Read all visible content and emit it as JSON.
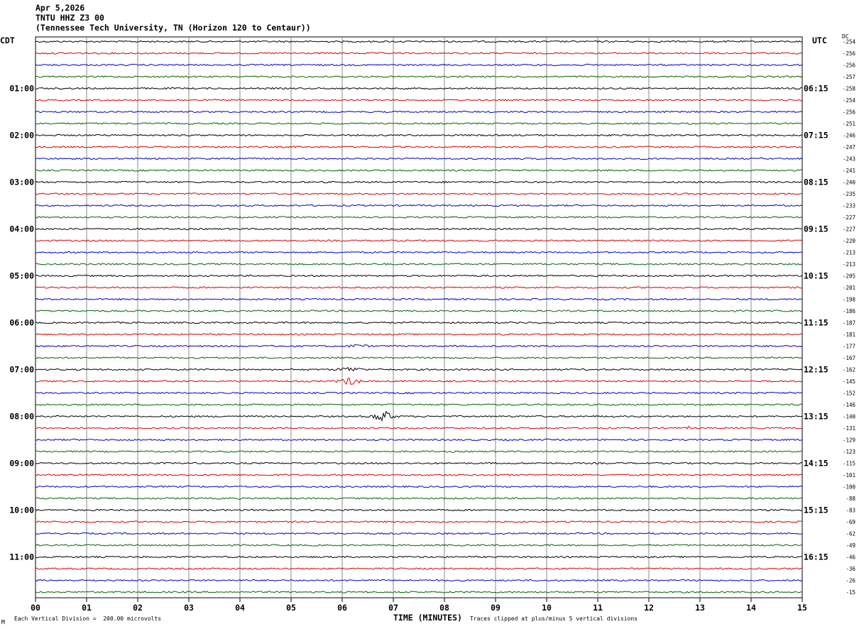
{
  "header": {
    "date": "Apr 5,2026",
    "station": "TNTU HHZ Z3 00",
    "location": "(Tennessee Tech University, TN (Horizon 120 to Centaur))"
  },
  "left_tz": "CDT",
  "right_tz": "UTC",
  "dc_label": "DC",
  "footer": {
    "scale": "Each Vertical Division =  200.00 microvolts",
    "xlabel": "TIME (MINUTES)",
    "clip": "Traces clipped at plus/minus 5 vertical divisions",
    "corner": "M"
  },
  "colors": {
    "black": "#000000",
    "red": "#dd0000",
    "blue": "#0000cc",
    "green": "#006600",
    "grid": "#888888"
  },
  "chart_data": {
    "type": "line",
    "title": "TNTU HHZ Z3 00",
    "xlabel": "TIME (MINUTES)",
    "xlim": [
      0,
      15
    ],
    "x_ticks": [
      "00",
      "01",
      "02",
      "03",
      "04",
      "05",
      "06",
      "07",
      "08",
      "09",
      "10",
      "11",
      "12",
      "13",
      "14",
      "15"
    ],
    "trace_minutes": 15,
    "trace_count": 48,
    "trace_color_cycle": [
      "black",
      "red",
      "blue",
      "green"
    ],
    "left_hour_labels": [
      "01:00",
      "02:00",
      "03:00",
      "04:00",
      "05:00",
      "06:00",
      "07:00",
      "08:00",
      "09:00",
      "10:00",
      "11:00"
    ],
    "right_hour_labels": [
      "06:15",
      "07:15",
      "08:15",
      "09:15",
      "10:15",
      "11:15",
      "12:15",
      "13:15",
      "14:15",
      "15:15",
      "16:15"
    ],
    "dc_offsets": [
      -254,
      -256,
      -256,
      -257,
      -258,
      -254,
      -256,
      -251,
      -246,
      -247,
      -243,
      -241,
      -240,
      -235,
      -233,
      -227,
      -227,
      -220,
      -213,
      -213,
      -205,
      -201,
      -198,
      -186,
      -187,
      -181,
      -177,
      -167,
      -162,
      -145,
      -152,
      -146,
      -140,
      -131,
      -129,
      -123,
      -115,
      -101,
      -100,
      -88,
      -83,
      -69,
      -62,
      -49,
      -46,
      -36,
      -26,
      -15
    ],
    "events": [
      {
        "trace": 28,
        "start_min": 5.8,
        "end_min": 6.5,
        "amplitude": 3
      },
      {
        "trace": 29,
        "start_min": 5.85,
        "end_min": 6.45,
        "amplitude": 5
      },
      {
        "trace": 32,
        "start_min": 6.5,
        "end_min": 7.1,
        "amplitude": 8
      },
      {
        "trace": 26,
        "start_min": 6.0,
        "end_min": 6.6,
        "amplitude": 2
      },
      {
        "trace": 33,
        "start_min": 12.7,
        "end_min": 12.9,
        "amplitude": 2
      }
    ]
  }
}
